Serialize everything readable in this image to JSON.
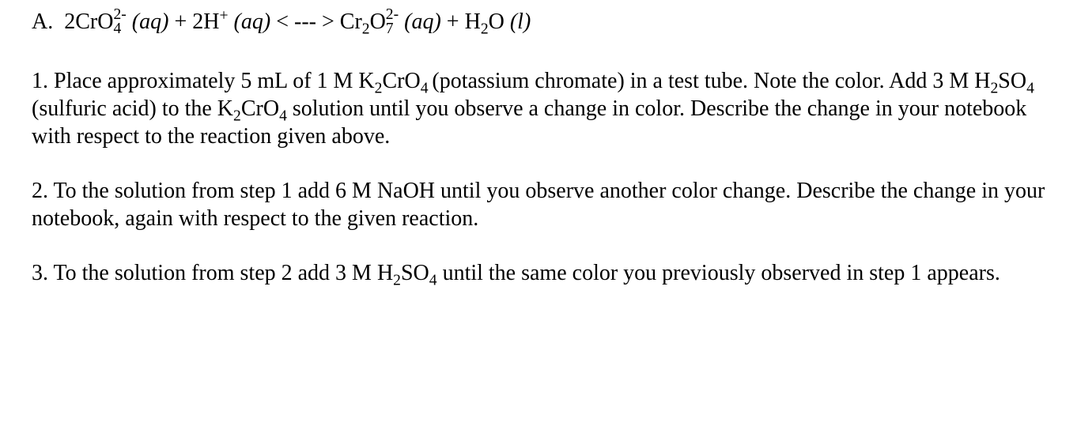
{
  "colors": {
    "text": "#000000",
    "background": "#ffffff"
  },
  "typography": {
    "font_family": "Times New Roman",
    "font_size_pt": 21,
    "line_height": 1.25
  },
  "equation": {
    "label": "A.",
    "lhs_coeff1": "2CrO",
    "lhs_species1_subsup_sub": "4",
    "lhs_species1_subsup_sup": "2-",
    "lhs_state1": "(aq)",
    "plus1": " + ",
    "lhs_coeff2": "2H",
    "lhs_species2_sup": "+",
    "lhs_state2": "(aq)",
    "arrow": " < --- > ",
    "rhs_coeff1": "Cr",
    "rhs_species1_sub1": "2",
    "rhs_species1_O": "O",
    "rhs_species1_subsup_sub": "7",
    "rhs_species1_subsup_sup": "2-",
    "rhs_state1": "(aq)",
    "plus2": " + ",
    "rhs_coeff2": "H",
    "rhs_species2_sub1": "2",
    "rhs_species2_O": "O",
    "rhs_state2": "(l)"
  },
  "steps": {
    "s1_label": "1.",
    "s1_a": "  Place approximately 5 mL of 1 M K",
    "s1_k2cro4_sub1": "2",
    "s1_k2cro4_mid": "CrO",
    "s1_k2cro4_sub2": "4 ",
    "s1_b": "(potassium chromate) in a test tube.  Note the color.  Add 3 M H",
    "s1_h2so4_sub1": "2",
    "s1_h2so4_mid": "SO",
    "s1_h2so4_sub2": "4",
    "s1_c": " (sulfuric acid) to the K",
    "s1_k2cro4b_sub1": "2",
    "s1_k2cro4b_mid": "CrO",
    "s1_k2cro4b_sub2": "4",
    "s1_d": " solution until you observe a change in color.  Describe the change in your notebook with respect to the reaction given above.",
    "s2_label": "2.",
    "s2_text": "  To the solution from step 1 add 6 M NaOH until you observe another color change.  Describe the change in your notebook, again with respect to the given reaction.",
    "s3_label": "3.",
    "s3_a": "  To the solution from step 2 add 3 M H",
    "s3_h2so4_sub1": "2",
    "s3_h2so4_mid": "SO",
    "s3_h2so4_sub2": "4",
    "s3_b": " until the same color you previously observed in step 1 appears."
  }
}
